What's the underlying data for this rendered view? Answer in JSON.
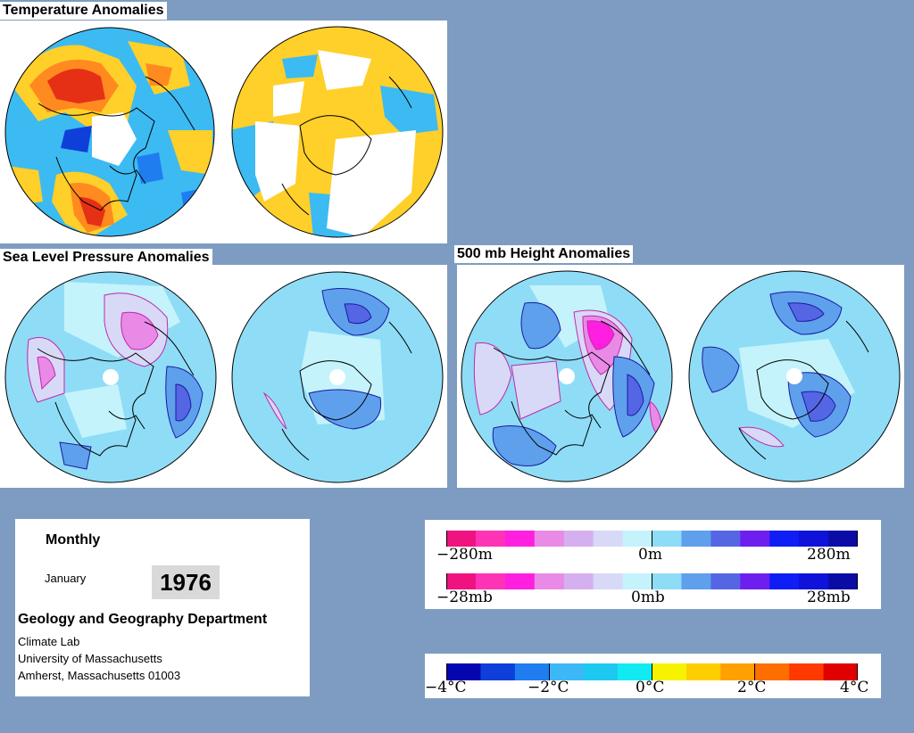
{
  "sections": {
    "temperature": {
      "title": "Temperature Anomalies"
    },
    "slp": {
      "title": "Sea Level Pressure Anomalies"
    },
    "height500": {
      "title": "500 mb Height Anomalies"
    }
  },
  "info": {
    "period": "Monthly",
    "month": "January",
    "year": "1976",
    "department": "Geology and Geography Department",
    "lab": "Climate Lab",
    "university": "University of Massachusetts",
    "address": "Amherst, Massachusetts 01003"
  },
  "legends": {
    "height": {
      "min": "−280m",
      "mid": "0m",
      "max": "280m"
    },
    "pressure": {
      "min": "−28mb",
      "mid": "0mb",
      "max": "28mb"
    },
    "temperature": {
      "ticks": [
        "−4°C",
        "−2°C",
        "0°C",
        "2°C",
        "4°C"
      ]
    }
  },
  "colors": {
    "background": "#7e9cc2",
    "anomaly_scale": [
      "#f0127e",
      "#ff33b5",
      "#ff1fe0",
      "#e98ae6",
      "#d4b0ee",
      "#d8d9f7",
      "#c4f3fb",
      "#8fdcf7",
      "#5ea0ec",
      "#5566e4",
      "#6e1fef",
      "#0f1ef5",
      "#0f13d9",
      "#0b0ca6"
    ],
    "temperature_scale": [
      "#0606b0",
      "#0e3fd9",
      "#1f7df0",
      "#3bb8f5",
      "#1dc9f0",
      "#12eaf2",
      "#f6f200",
      "#ffce00",
      "#ffa000",
      "#ff6e00",
      "#ff3a00",
      "#e00000"
    ]
  }
}
